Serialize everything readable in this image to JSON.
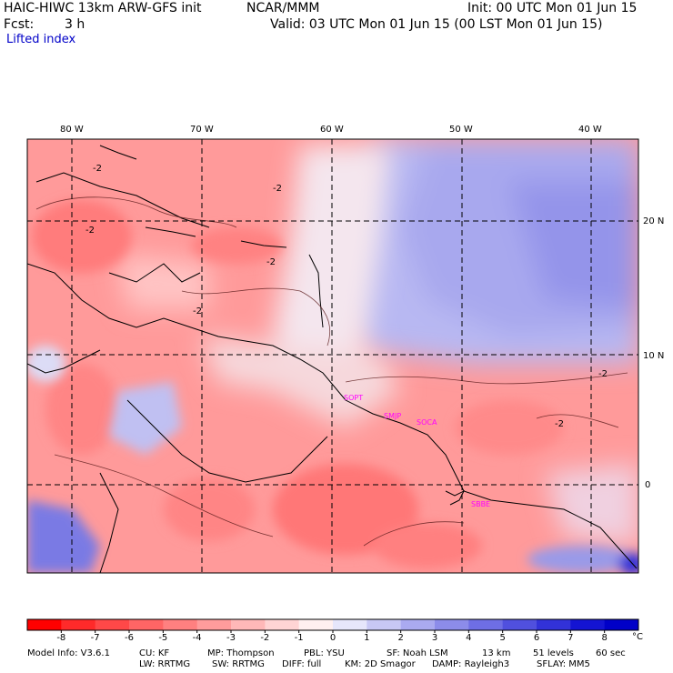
{
  "header": {
    "title_left": "HAIC-HIWC 13km ARW-GFS init",
    "org": "NCAR/MMM",
    "init": "Init: 00 UTC Mon 01 Jun 15",
    "fcst_label": "Fcst:",
    "fcst_value": "3 h",
    "valid": "Valid: 03 UTC Mon 01 Jun 15 (00 LST Mon 01 Jun 15)",
    "field": "Lifted index"
  },
  "map": {
    "lon_labels": [
      "80 W",
      "70 W",
      "60 W",
      "50 W",
      "40 W"
    ],
    "lat_labels": [
      "20 N",
      "10 N",
      "0"
    ],
    "contour_labels": [
      "-2",
      "-2",
      "-2",
      "-2",
      "-2",
      "-2",
      "-2"
    ],
    "stations": [
      "SOPT",
      "SMJP",
      "SOCA",
      "SBBE"
    ]
  },
  "colorbar": {
    "ticks": [
      "-8",
      "-7",
      "-6",
      "-5",
      "-4",
      "-3",
      "-2",
      "-1",
      "0",
      "1",
      "2",
      "3",
      "4",
      "5",
      "6",
      "7",
      "8"
    ],
    "unit": "°C",
    "colors": [
      "#ff0000",
      "#ff2a2a",
      "#ff4848",
      "#ff6565",
      "#ff8080",
      "#ff9c9c",
      "#ffb8b8",
      "#ffd4d4",
      "#fff0f0",
      "#e6e6fb",
      "#c8c8f5",
      "#aaaaf0",
      "#8c8cea",
      "#6e6ee4",
      "#5050de",
      "#3232d8",
      "#1414d2",
      "#0000c8"
    ]
  },
  "footer": {
    "line1": [
      "Model Info: V3.6.1",
      "CU: KF",
      "MP: Thompson",
      "PBL: YSU",
      "SF: Noah LSM",
      "13 km",
      "51 levels",
      "60 sec"
    ],
    "line2": [
      "LW: RRTMG",
      "SW: RRTMG",
      "DIFF: full",
      "KM: 2D Smagor",
      "DAMP: Rayleigh3",
      "SFLAY: MM5"
    ]
  }
}
